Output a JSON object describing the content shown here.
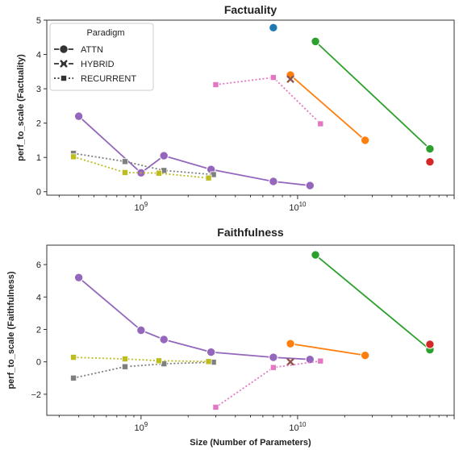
{
  "chart_data": [
    {
      "type": "line",
      "title": "Factuality",
      "xlabel": "",
      "ylabel": "perf_to_scale (Factuality)",
      "xscale": "log",
      "xlim": [
        250000000.0,
        100000000000.0
      ],
      "ylim": [
        -0.1,
        5.0
      ],
      "yticks": [
        "0",
        "1",
        "2",
        "3",
        "4",
        "5"
      ],
      "xticks": [
        "10^9",
        "10^10"
      ],
      "legend": {
        "title": "Paradigm",
        "placement": "top-left",
        "entries": [
          {
            "label": "ATTN",
            "marker": "circle",
            "dash": "solid"
          },
          {
            "label": "HYBRID",
            "marker": "x",
            "dash": "dashed"
          },
          {
            "label": "RECURRENT",
            "marker": "square",
            "dash": "dotted"
          }
        ]
      },
      "series": [
        {
          "paradigm": "ATTN",
          "color": "#9467bd",
          "x": [
            400000000.0,
            1000000000.0,
            1400000000.0,
            2800000000.0,
            7000000000.0,
            12000000000.0
          ],
          "y": [
            2.2,
            0.55,
            1.05,
            0.65,
            0.3,
            0.18
          ]
        },
        {
          "paradigm": "ATTN",
          "color": "#ff7f0e",
          "x": [
            9000000000.0,
            27000000000.0
          ],
          "y": [
            3.4,
            1.5
          ]
        },
        {
          "paradigm": "ATTN",
          "color": "#2ca02c",
          "x": [
            13000000000.0,
            70000000000.0
          ],
          "y": [
            4.38,
            1.25
          ]
        },
        {
          "paradigm": "ATTN",
          "color": "#1f77b4",
          "x": [
            7000000000.0
          ],
          "y": [
            4.78
          ]
        },
        {
          "paradigm": "ATTN",
          "color": "#d62728",
          "x": [
            70000000000.0
          ],
          "y": [
            0.87
          ]
        },
        {
          "paradigm": "HYBRID",
          "color": "#8c564b",
          "x": [
            9000000000.0
          ],
          "y": [
            3.28
          ]
        },
        {
          "paradigm": "RECURRENT",
          "color": "#7f7f7f",
          "x": [
            370000000.0,
            790000000.0,
            1400000000.0,
            2900000000.0
          ],
          "y": [
            1.12,
            0.88,
            0.62,
            0.5
          ]
        },
        {
          "paradigm": "RECURRENT",
          "color": "#bcbd22",
          "x": [
            370000000.0,
            790000000.0,
            1300000000.0,
            2700000000.0
          ],
          "y": [
            1.02,
            0.56,
            0.54,
            0.4
          ]
        },
        {
          "paradigm": "RECURRENT",
          "color": "#e377c2",
          "x": [
            3000000000.0,
            7000000000.0,
            14000000000.0
          ],
          "y": [
            3.12,
            3.33,
            1.98
          ]
        }
      ]
    },
    {
      "type": "line",
      "title": "Faithfulness",
      "xlabel": "Size (Number of Parameters)",
      "ylabel": "perf_to_scale (Faithfulness)",
      "xscale": "log",
      "xlim": [
        250000000.0,
        100000000000.0
      ],
      "ylim": [
        -3.3,
        7.2
      ],
      "yticks": [
        "−2",
        "0",
        "2",
        "4",
        "6"
      ],
      "xticks": [
        "10^9",
        "10^10"
      ],
      "series": [
        {
          "paradigm": "ATTN",
          "color": "#9467bd",
          "x": [
            400000000.0,
            1000000000.0,
            1400000000.0,
            2800000000.0,
            7000000000.0,
            12000000000.0
          ],
          "y": [
            5.2,
            1.95,
            1.38,
            0.6,
            0.28,
            0.15
          ]
        },
        {
          "paradigm": "ATTN",
          "color": "#ff7f0e",
          "x": [
            9000000000.0,
            27000000000.0
          ],
          "y": [
            1.12,
            0.4
          ]
        },
        {
          "paradigm": "ATTN",
          "color": "#2ca02c",
          "x": [
            13000000000.0,
            70000000000.0
          ],
          "y": [
            6.6,
            0.75
          ]
        },
        {
          "paradigm": "ATTN",
          "color": "#d62728",
          "x": [
            70000000000.0
          ],
          "y": [
            1.08
          ]
        },
        {
          "paradigm": "HYBRID",
          "color": "#8c564b",
          "x": [
            9000000000.0
          ],
          "y": [
            0.0
          ]
        },
        {
          "paradigm": "RECURRENT",
          "color": "#7f7f7f",
          "x": [
            370000000.0,
            790000000.0,
            1400000000.0,
            2900000000.0
          ],
          "y": [
            -1.0,
            -0.3,
            -0.12,
            -0.02
          ]
        },
        {
          "paradigm": "RECURRENT",
          "color": "#bcbd22",
          "x": [
            370000000.0,
            790000000.0,
            1300000000.0,
            2700000000.0
          ],
          "y": [
            0.28,
            0.18,
            0.07,
            0.02
          ]
        },
        {
          "paradigm": "RECURRENT",
          "color": "#e377c2",
          "x": [
            3000000000.0,
            7000000000.0,
            14000000000.0
          ],
          "y": [
            -2.8,
            -0.35,
            0.05
          ]
        }
      ]
    }
  ]
}
